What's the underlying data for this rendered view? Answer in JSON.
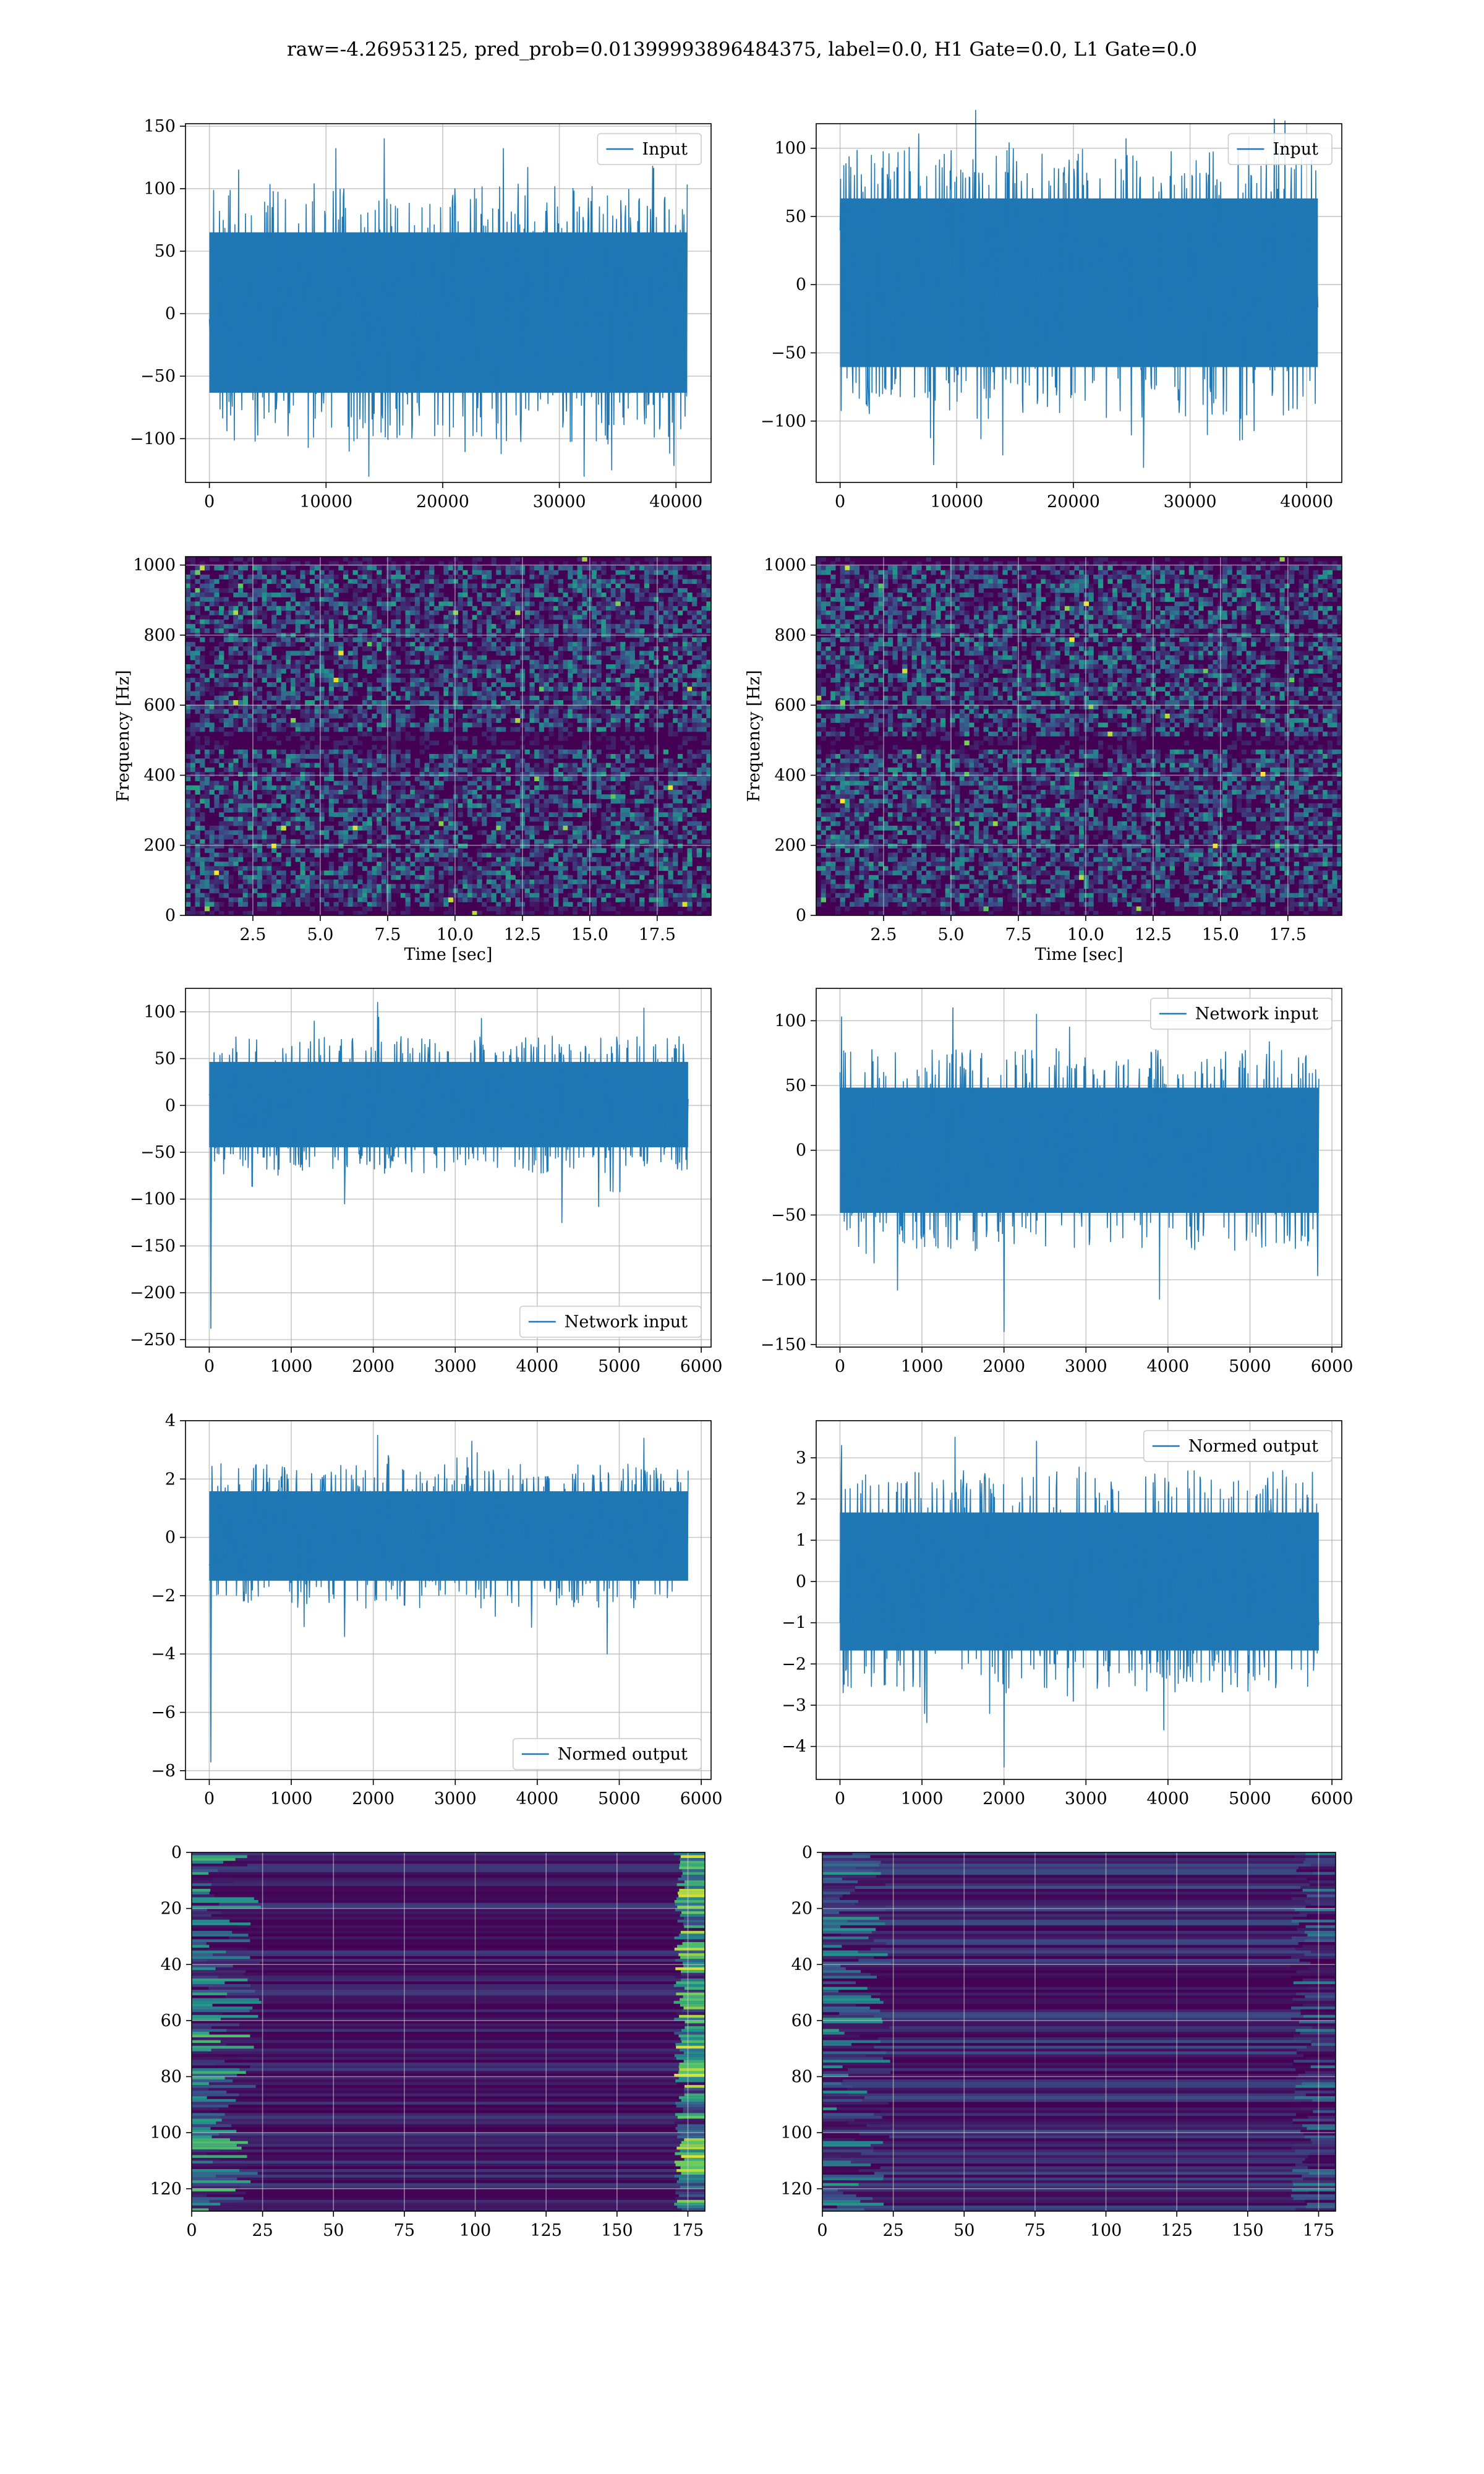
{
  "figure": {
    "suptitle": "raw=-4.26953125, pred_prob=0.01399993896484375, label=0.0, H1 Gate=0.0, L1 Gate=0.0"
  },
  "colors": {
    "line": "#1f77b4",
    "grid": "#b0b0b0",
    "viridis_dark": "#440154",
    "viridis_mid": "#21918c",
    "viridis_bright": "#fde725"
  },
  "chart_data": [
    {
      "id": "h1-input",
      "type": "line",
      "legend": "Input",
      "legend_loc": "upper right",
      "xlim": [
        -2048,
        43008
      ],
      "ylim": [
        -135,
        152
      ],
      "xticks": [
        0,
        10000,
        20000,
        30000,
        40000
      ],
      "yticks": [
        -100,
        -50,
        0,
        50,
        100,
        150
      ],
      "xlabel": "",
      "ylabel": "",
      "grid": true,
      "signal": {
        "n": 40960,
        "band": [
          -68,
          70
        ],
        "peaks": [
          [
            15000,
            140
          ],
          [
            2500,
            115
          ],
          [
            38000,
            118
          ],
          [
            34500,
            -125
          ],
          [
            25000,
            -112
          ],
          [
            12000,
            -110
          ]
        ]
      }
    },
    {
      "id": "l1-input",
      "type": "line",
      "legend": "Input",
      "legend_loc": "upper right",
      "xlim": [
        -2048,
        43008
      ],
      "ylim": [
        -145,
        118
      ],
      "xticks": [
        0,
        10000,
        20000,
        30000,
        40000
      ],
      "yticks": [
        -100,
        -50,
        0,
        50,
        100
      ],
      "xlabel": "",
      "ylabel": "",
      "grid": true,
      "signal": {
        "n": 40960,
        "band": [
          -65,
          68
        ],
        "peaks": [
          [
            24500,
            107
          ],
          [
            14500,
            104
          ],
          [
            8000,
            -132
          ],
          [
            26000,
            -134
          ],
          [
            31500,
            -110
          ],
          [
            35500,
            -107
          ]
        ]
      }
    },
    {
      "id": "h1-spectrogram",
      "type": "heatmap",
      "xlim": [
        0,
        19.5
      ],
      "ylim": [
        0,
        1024
      ],
      "xticks": [
        2.5,
        5.0,
        7.5,
        10.0,
        12.5,
        15.0,
        17.5
      ],
      "yticks": [
        0,
        200,
        400,
        600,
        800,
        1000
      ],
      "xlabel": "Time [sec]",
      "ylabel": "Frequency [Hz]",
      "grid": true,
      "colormap": "viridis",
      "dark_bands_hz": [
        [
          470,
          520
        ],
        [
          1000,
          1024
        ],
        [
          0,
          25
        ]
      ]
    },
    {
      "id": "l1-spectrogram",
      "type": "heatmap",
      "xlim": [
        0,
        19.5
      ],
      "ylim": [
        0,
        1024
      ],
      "xticks": [
        2.5,
        5.0,
        7.5,
        10.0,
        12.5,
        15.0,
        17.5
      ],
      "yticks": [
        0,
        200,
        400,
        600,
        800,
        1000
      ],
      "xlabel": "Time [sec]",
      "ylabel": "Frequency [Hz]",
      "grid": true,
      "colormap": "viridis",
      "dark_bands_hz": [
        [
          480,
          510
        ],
        [
          1000,
          1024
        ],
        [
          0,
          25
        ]
      ]
    },
    {
      "id": "h1-network-input",
      "type": "line",
      "legend": "Network input",
      "legend_loc": "lower right",
      "xlim": [
        -290,
        6120
      ],
      "ylim": [
        -258,
        125
      ],
      "xticks": [
        0,
        1000,
        2000,
        3000,
        4000,
        5000,
        6000
      ],
      "yticks": [
        -250,
        -200,
        -150,
        -100,
        -50,
        0,
        50,
        100
      ],
      "xlabel": "",
      "ylabel": "",
      "grid": true,
      "signal": {
        "n": 5840,
        "band": [
          -48,
          50
        ],
        "peaks": [
          [
            20,
            -238
          ],
          [
            2050,
            110
          ],
          [
            5300,
            104
          ],
          [
            4300,
            -125
          ],
          [
            1650,
            -105
          ],
          [
            4750,
            -108
          ]
        ]
      }
    },
    {
      "id": "l1-network-input",
      "type": "line",
      "legend": "Network input",
      "legend_loc": "upper right",
      "xlim": [
        -290,
        6120
      ],
      "ylim": [
        -152,
        125
      ],
      "xticks": [
        0,
        1000,
        2000,
        3000,
        4000,
        5000,
        6000
      ],
      "yticks": [
        -150,
        -100,
        -50,
        0,
        50,
        100
      ],
      "xlabel": "",
      "ylabel": "",
      "grid": true,
      "signal": {
        "n": 5840,
        "band": [
          -52,
          52
        ],
        "peaks": [
          [
            20,
            103
          ],
          [
            1380,
            110
          ],
          [
            2400,
            105
          ],
          [
            2000,
            -140
          ],
          [
            3900,
            -115
          ],
          [
            700,
            -108
          ]
        ]
      }
    },
    {
      "id": "h1-normed-output",
      "type": "line",
      "legend": "Normed output",
      "legend_loc": "lower right",
      "xlim": [
        -290,
        6120
      ],
      "ylim": [
        -8.3,
        4.0
      ],
      "xticks": [
        0,
        1000,
        2000,
        3000,
        4000,
        5000,
        6000
      ],
      "yticks": [
        -8,
        -6,
        -4,
        -2,
        0,
        2,
        4
      ],
      "xlabel": "",
      "ylabel": "",
      "grid": true,
      "signal": {
        "n": 5840,
        "band": [
          -1.6,
          1.7
        ],
        "peaks": [
          [
            20,
            -7.7
          ],
          [
            2050,
            3.5
          ],
          [
            5300,
            3.4
          ],
          [
            4850,
            -4.0
          ],
          [
            1650,
            -3.4
          ],
          [
            3200,
            3.3
          ]
        ]
      }
    },
    {
      "id": "l1-normed-output",
      "type": "line",
      "legend": "Normed output",
      "legend_loc": "upper right",
      "xlim": [
        -290,
        6120
      ],
      "ylim": [
        -4.8,
        3.9
      ],
      "xticks": [
        0,
        1000,
        2000,
        3000,
        4000,
        5000,
        6000
      ],
      "yticks": [
        -4,
        -3,
        -2,
        -1,
        0,
        1,
        2,
        3
      ],
      "xlabel": "",
      "ylabel": "",
      "grid": true,
      "signal": {
        "n": 5840,
        "band": [
          -1.8,
          1.8
        ],
        "peaks": [
          [
            20,
            3.3
          ],
          [
            1400,
            3.5
          ],
          [
            2400,
            3.4
          ],
          [
            2000,
            -4.5
          ],
          [
            3950,
            -3.6
          ],
          [
            1030,
            -3.2
          ]
        ]
      }
    },
    {
      "id": "h1-feature-map",
      "type": "heatmap",
      "xlim": [
        0,
        181
      ],
      "ylim": [
        128,
        0
      ],
      "xticks": [
        0,
        25,
        50,
        75,
        100,
        125,
        150,
        175
      ],
      "yticks": [
        0,
        20,
        40,
        60,
        80,
        100,
        120
      ],
      "xlabel": "",
      "ylabel": "",
      "grid": true,
      "colormap": "viridis"
    },
    {
      "id": "l1-feature-map",
      "type": "heatmap",
      "xlim": [
        0,
        181
      ],
      "ylim": [
        128,
        0
      ],
      "xticks": [
        0,
        25,
        50,
        75,
        100,
        125,
        150,
        175
      ],
      "yticks": [
        0,
        20,
        40,
        60,
        80,
        100,
        120
      ],
      "xlabel": "",
      "ylabel": "",
      "grid": true,
      "colormap": "viridis"
    }
  ]
}
